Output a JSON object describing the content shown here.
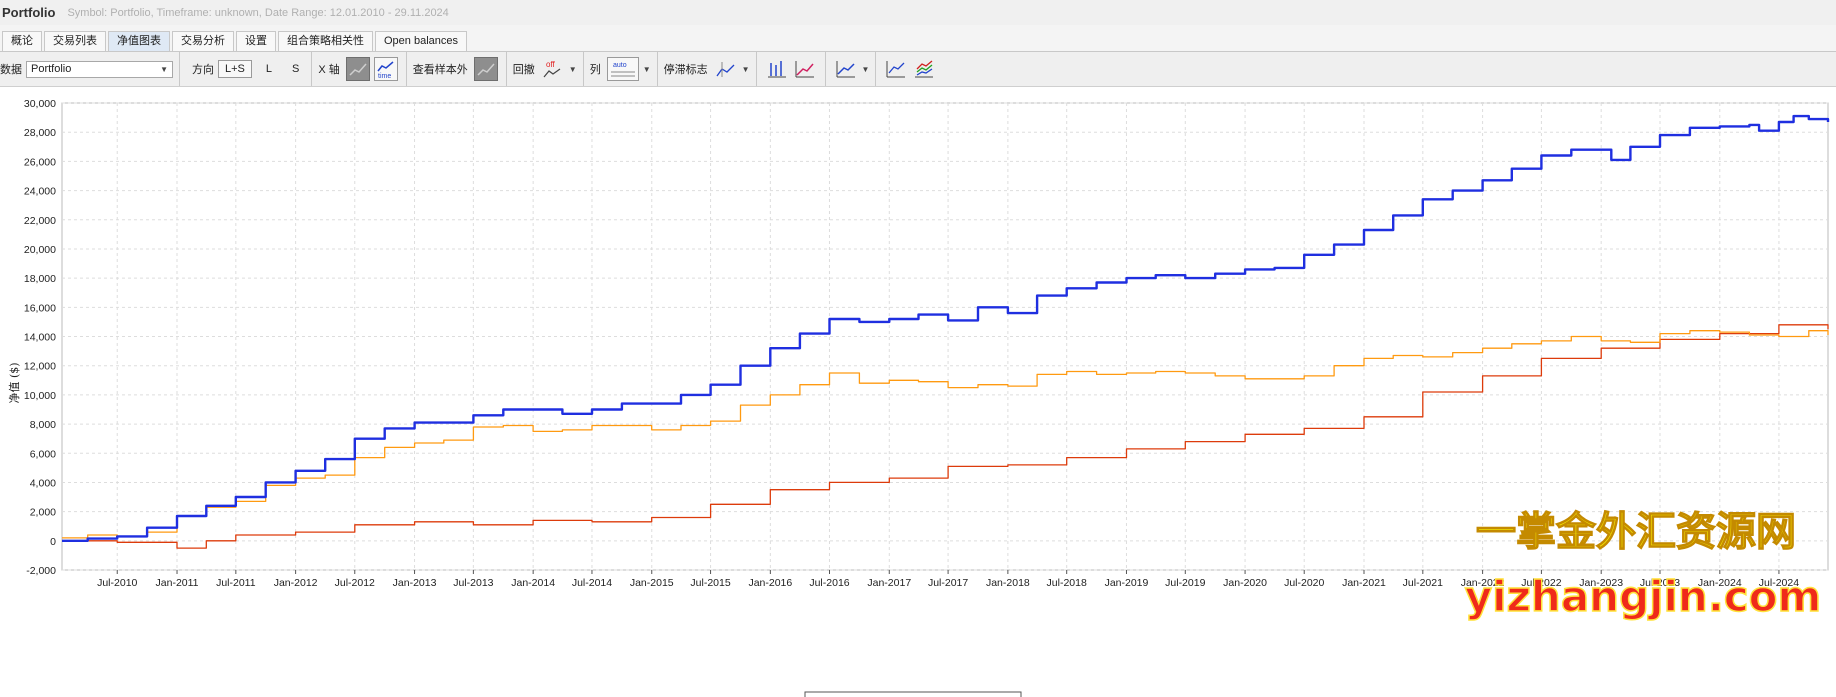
{
  "app": {
    "title": "Portfolio",
    "subtitle": "Symbol: Portfolio, Timeframe: unknown, Date Range: 12.01.2010 - 29.11.2024"
  },
  "tabs": [
    {
      "label": "概论"
    },
    {
      "label": "交易列表"
    },
    {
      "label": "净值图表",
      "active": true
    },
    {
      "label": "交易分析"
    },
    {
      "label": "设置"
    },
    {
      "label": "组合策略相关性"
    },
    {
      "label": "Open balances"
    }
  ],
  "toolbar": {
    "data_label": "数据",
    "data_value": "Portfolio",
    "direction_label": "方向",
    "direction_options": [
      "L+S",
      "L",
      "S"
    ],
    "direction_selected": "L+S",
    "x_axis_label": "X 轴",
    "oos_label": "查看样本外",
    "drawdown_label": "回撤",
    "drawdown_icon_text": "off",
    "column_label": "列",
    "column_icon_text": "auto",
    "stagnation_label": "停滞标志",
    "time_icon_text": "time"
  },
  "watermark": {
    "line1": "一掌金外汇资源网",
    "line2": "yizhangjin.com"
  },
  "colors": {
    "blue": "#1f2fe0",
    "orange": "#ff9a10",
    "red": "#dd3b0b",
    "grid": "#dddddd",
    "watermark_cn": "#f3e600",
    "watermark_en": "#ef2a1a"
  },
  "chart_data": {
    "type": "line",
    "ylabel": "净值 ($)",
    "ylim": [
      -2000,
      30000
    ],
    "y_ticks": [
      "-2,000",
      "0",
      "2,000",
      "4,000",
      "6,000",
      "8,000",
      "10,000",
      "12,000",
      "14,000",
      "16,000",
      "18,000",
      "20,000",
      "22,000",
      "24,000",
      "26,000",
      "28,000",
      "30,000"
    ],
    "x_ticks": [
      "Jul-2010",
      "Jan-2011",
      "Jul-2011",
      "Jan-2012",
      "Jul-2012",
      "Jan-2013",
      "Jul-2013",
      "Jan-2014",
      "Jul-2014",
      "Jan-2015",
      "Jul-2015",
      "Jan-2016",
      "Jul-2016",
      "Jan-2017",
      "Jul-2017",
      "Jan-2018",
      "Jul-2018",
      "Jan-2019",
      "Jul-2019",
      "Jan-2020",
      "Jul-2020",
      "Jan-2021",
      "Jul-2021",
      "Jan-2022",
      "Jul-2022",
      "Jan-2023",
      "Jul-2023",
      "Jan-2024",
      "Jul-2024"
    ],
    "xlim": [
      "2010-01-12",
      "2024-11-29"
    ],
    "grid": true,
    "series": [
      {
        "color": "#1f2fe0",
        "points": [
          [
            "2010-01-12",
            0
          ],
          [
            "2010-04-01",
            150
          ],
          [
            "2010-07-01",
            300
          ],
          [
            "2010-10-01",
            900
          ],
          [
            "2011-01-01",
            1700
          ],
          [
            "2011-04-01",
            2400
          ],
          [
            "2011-07-01",
            3000
          ],
          [
            "2011-10-01",
            4000
          ],
          [
            "2012-01-01",
            4800
          ],
          [
            "2012-04-01",
            5600
          ],
          [
            "2012-07-01",
            7000
          ],
          [
            "2012-10-01",
            7700
          ],
          [
            "2013-01-01",
            8100
          ],
          [
            "2013-04-01",
            8100
          ],
          [
            "2013-07-01",
            8600
          ],
          [
            "2013-10-01",
            9000
          ],
          [
            "2014-01-01",
            9000
          ],
          [
            "2014-04-01",
            8700
          ],
          [
            "2014-07-01",
            9000
          ],
          [
            "2014-10-01",
            9400
          ],
          [
            "2015-01-01",
            9400
          ],
          [
            "2015-04-01",
            10000
          ],
          [
            "2015-07-01",
            10700
          ],
          [
            "2015-10-01",
            12000
          ],
          [
            "2016-01-01",
            13200
          ],
          [
            "2016-04-01",
            14200
          ],
          [
            "2016-07-01",
            15200
          ],
          [
            "2016-10-01",
            15000
          ],
          [
            "2017-01-01",
            15200
          ],
          [
            "2017-04-01",
            15500
          ],
          [
            "2017-07-01",
            15100
          ],
          [
            "2017-10-01",
            16000
          ],
          [
            "2018-01-01",
            15600
          ],
          [
            "2018-04-01",
            16800
          ],
          [
            "2018-07-01",
            17300
          ],
          [
            "2018-10-01",
            17700
          ],
          [
            "2019-01-01",
            18000
          ],
          [
            "2019-04-01",
            18200
          ],
          [
            "2019-07-01",
            18000
          ],
          [
            "2019-10-01",
            18300
          ],
          [
            "2020-01-01",
            18600
          ],
          [
            "2020-04-01",
            18700
          ],
          [
            "2020-07-01",
            19600
          ],
          [
            "2020-10-01",
            20300
          ],
          [
            "2021-01-01",
            21300
          ],
          [
            "2021-04-01",
            22300
          ],
          [
            "2021-07-01",
            23400
          ],
          [
            "2021-10-01",
            24000
          ],
          [
            "2022-01-01",
            24700
          ],
          [
            "2022-04-01",
            25500
          ],
          [
            "2022-07-01",
            26400
          ],
          [
            "2022-10-01",
            26800
          ],
          [
            "2023-01-01",
            26800
          ],
          [
            "2023-02-01",
            26100
          ],
          [
            "2023-04-01",
            27000
          ],
          [
            "2023-07-01",
            27800
          ],
          [
            "2023-10-01",
            28300
          ],
          [
            "2024-01-01",
            28400
          ],
          [
            "2024-04-01",
            28500
          ],
          [
            "2024-05-01",
            28100
          ],
          [
            "2024-07-01",
            28700
          ],
          [
            "2024-08-15",
            29100
          ],
          [
            "2024-10-01",
            28900
          ],
          [
            "2024-11-29",
            28700
          ]
        ]
      },
      {
        "color": "#ff9a10",
        "points": [
          [
            "2010-01-12",
            200
          ],
          [
            "2010-04-01",
            400
          ],
          [
            "2010-07-01",
            300
          ],
          [
            "2010-10-01",
            600
          ],
          [
            "2011-01-01",
            1700
          ],
          [
            "2011-04-01",
            2300
          ],
          [
            "2011-07-01",
            2700
          ],
          [
            "2011-10-01",
            3800
          ],
          [
            "2012-01-01",
            4300
          ],
          [
            "2012-04-01",
            4500
          ],
          [
            "2012-07-01",
            5700
          ],
          [
            "2012-10-01",
            6400
          ],
          [
            "2013-01-01",
            6700
          ],
          [
            "2013-04-01",
            6900
          ],
          [
            "2013-07-01",
            7800
          ],
          [
            "2013-10-01",
            7900
          ],
          [
            "2014-01-01",
            7500
          ],
          [
            "2014-04-01",
            7600
          ],
          [
            "2014-07-01",
            7900
          ],
          [
            "2014-10-01",
            7900
          ],
          [
            "2015-01-01",
            7600
          ],
          [
            "2015-04-01",
            7900
          ],
          [
            "2015-07-01",
            8200
          ],
          [
            "2015-10-01",
            9300
          ],
          [
            "2016-01-01",
            10000
          ],
          [
            "2016-04-01",
            10700
          ],
          [
            "2016-07-01",
            11500
          ],
          [
            "2016-10-01",
            10800
          ],
          [
            "2017-01-01",
            11000
          ],
          [
            "2017-04-01",
            10900
          ],
          [
            "2017-07-01",
            10500
          ],
          [
            "2017-10-01",
            10700
          ],
          [
            "2018-01-01",
            10600
          ],
          [
            "2018-04-01",
            11400
          ],
          [
            "2018-07-01",
            11600
          ],
          [
            "2018-10-01",
            11400
          ],
          [
            "2019-01-01",
            11500
          ],
          [
            "2019-04-01",
            11600
          ],
          [
            "2019-07-01",
            11500
          ],
          [
            "2019-10-01",
            11300
          ],
          [
            "2020-01-01",
            11100
          ],
          [
            "2020-04-01",
            11100
          ],
          [
            "2020-07-01",
            11300
          ],
          [
            "2020-10-01",
            12000
          ],
          [
            "2021-01-01",
            12500
          ],
          [
            "2021-04-01",
            12700
          ],
          [
            "2021-07-01",
            12600
          ],
          [
            "2021-10-01",
            12900
          ],
          [
            "2022-01-01",
            13200
          ],
          [
            "2022-04-01",
            13500
          ],
          [
            "2022-07-01",
            13700
          ],
          [
            "2022-10-01",
            14000
          ],
          [
            "2023-01-01",
            13700
          ],
          [
            "2023-04-01",
            13600
          ],
          [
            "2023-07-01",
            14200
          ],
          [
            "2023-10-01",
            14400
          ],
          [
            "2024-01-01",
            14300
          ],
          [
            "2024-04-01",
            14100
          ],
          [
            "2024-07-01",
            14000
          ],
          [
            "2024-10-01",
            14400
          ],
          [
            "2024-11-29",
            14100
          ]
        ]
      },
      {
        "color": "#dd3b0b",
        "points": [
          [
            "2010-01-12",
            0
          ],
          [
            "2010-07-01",
            -100
          ],
          [
            "2011-01-01",
            -500
          ],
          [
            "2011-04-01",
            0
          ],
          [
            "2011-07-01",
            400
          ],
          [
            "2012-01-01",
            600
          ],
          [
            "2012-07-01",
            1100
          ],
          [
            "2013-01-01",
            1300
          ],
          [
            "2013-07-01",
            1100
          ],
          [
            "2014-01-01",
            1400
          ],
          [
            "2014-07-01",
            1300
          ],
          [
            "2015-01-01",
            1600
          ],
          [
            "2015-07-01",
            2500
          ],
          [
            "2016-01-01",
            3500
          ],
          [
            "2016-07-01",
            4000
          ],
          [
            "2017-01-01",
            4300
          ],
          [
            "2017-07-01",
            5100
          ],
          [
            "2018-01-01",
            5200
          ],
          [
            "2018-07-01",
            5700
          ],
          [
            "2019-01-01",
            6300
          ],
          [
            "2019-07-01",
            6800
          ],
          [
            "2020-01-01",
            7300
          ],
          [
            "2020-07-01",
            7700
          ],
          [
            "2021-01-01",
            8500
          ],
          [
            "2021-07-01",
            10200
          ],
          [
            "2022-01-01",
            11300
          ],
          [
            "2022-07-01",
            12500
          ],
          [
            "2023-01-01",
            13200
          ],
          [
            "2023-07-01",
            13800
          ],
          [
            "2024-01-01",
            14200
          ],
          [
            "2024-07-01",
            14800
          ],
          [
            "2024-11-29",
            14500
          ]
        ]
      }
    ]
  }
}
